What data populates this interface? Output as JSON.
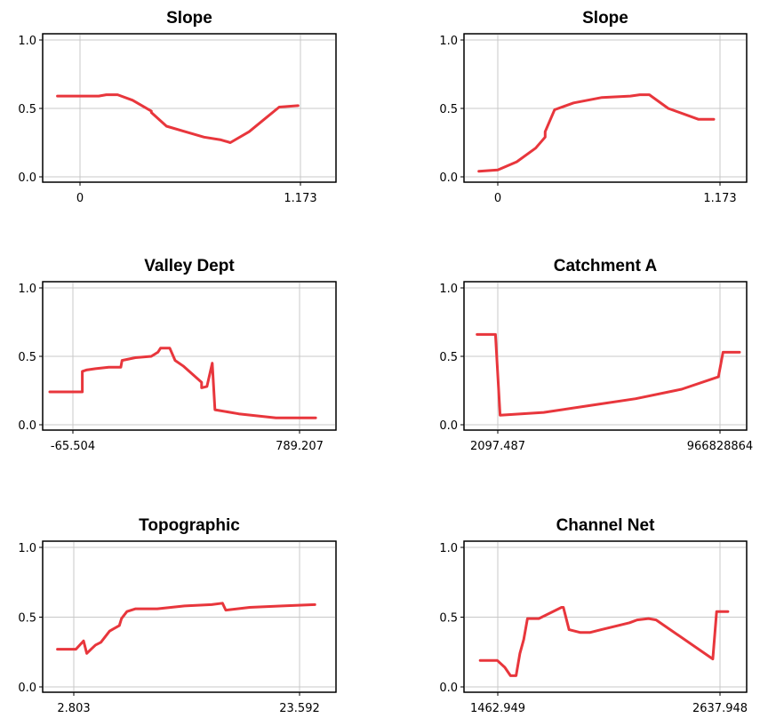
{
  "colors": {
    "curve": "#e8363c"
  },
  "chart_data": [
    {
      "type": "line",
      "title": "Slope",
      "y_ticks": [
        "0.0",
        "0.5",
        "1.0"
      ],
      "x_tick_labels": [
        "0",
        "1.173"
      ],
      "xlim": [
        0,
        1.173
      ],
      "ylim": [
        0,
        1
      ],
      "grid": true,
      "series": [
        {
          "x": [
            -0.12,
            0.1,
            0.14,
            0.2,
            0.28,
            0.38,
            0.38,
            0.46,
            0.56,
            0.66,
            0.75,
            0.8,
            0.9,
            0.98,
            1.06,
            1.16
          ],
          "y": [
            0.59,
            0.59,
            0.6,
            0.6,
            0.56,
            0.48,
            0.47,
            0.37,
            0.33,
            0.29,
            0.27,
            0.25,
            0.33,
            0.42,
            0.51,
            0.52
          ]
        }
      ]
    },
    {
      "type": "line",
      "title": "Slope",
      "y_ticks": [
        "0.0",
        "0.5",
        "1.0"
      ],
      "x_tick_labels": [
        "0",
        "1.173"
      ],
      "xlim": [
        0,
        1.173
      ],
      "ylim": [
        0,
        1
      ],
      "grid": true,
      "series": [
        {
          "x": [
            -0.1,
            0.0,
            0.1,
            0.2,
            0.25,
            0.25,
            0.3,
            0.4,
            0.55,
            0.7,
            0.75,
            0.8,
            0.9,
            1.06,
            1.14
          ],
          "y": [
            0.04,
            0.05,
            0.11,
            0.21,
            0.29,
            0.33,
            0.49,
            0.54,
            0.58,
            0.59,
            0.6,
            0.6,
            0.5,
            0.42,
            0.42
          ]
        }
      ]
    },
    {
      "type": "line",
      "title": "Valley Dept",
      "y_ticks": [
        "0.0",
        "0.5",
        "1.0"
      ],
      "x_tick_labels": [
        "-65.504",
        "789.207"
      ],
      "xlim": [
        -65.504,
        789.207
      ],
      "ylim": [
        0,
        1
      ],
      "grid": true,
      "series": [
        {
          "x": [
            -155,
            -30,
            -30,
            -15,
            20,
            70,
            115,
            120,
            170,
            230,
            255,
            265,
            300,
            320,
            350,
            420,
            420,
            440,
            460,
            470,
            560,
            700,
            770,
            850
          ],
          "y": [
            0.24,
            0.24,
            0.39,
            0.4,
            0.41,
            0.42,
            0.42,
            0.47,
            0.49,
            0.5,
            0.53,
            0.56,
            0.56,
            0.47,
            0.43,
            0.31,
            0.27,
            0.28,
            0.45,
            0.11,
            0.08,
            0.05,
            0.05,
            0.05
          ]
        }
      ]
    },
    {
      "type": "line",
      "title": "Catchment A",
      "y_ticks": [
        "0.0",
        "0.5",
        "1.0"
      ],
      "x_tick_labels": [
        "2097.487",
        "966828864"
      ],
      "xlim": [
        2097.487,
        966828864
      ],
      "ylim": [
        0,
        1
      ],
      "grid": true,
      "series": [
        {
          "x": [
            -90000000,
            -10000000,
            10000000,
            200000000,
            400000000,
            600000000,
            800000000,
            960000000,
            980000000,
            1060000000
          ],
          "y": [
            0.66,
            0.66,
            0.07,
            0.09,
            0.14,
            0.19,
            0.26,
            0.35,
            0.53,
            0.53
          ]
        }
      ]
    },
    {
      "type": "line",
      "title": "Topographic",
      "y_ticks": [
        "0.0",
        "0.5",
        "1.0"
      ],
      "x_tick_labels": [
        "2.803",
        "23.592"
      ],
      "xlim": [
        2.803,
        23.592
      ],
      "ylim": [
        0,
        1
      ],
      "grid": true,
      "series": [
        {
          "x": [
            1.3,
            3.0,
            3.7,
            4.0,
            4.4,
            4.8,
            5.3,
            6.1,
            7.0,
            7.2,
            7.7,
            8.5,
            10.5,
            13.0,
            15.5,
            16.5,
            16.8,
            19.0,
            22.0,
            25.0
          ],
          "y": [
            0.27,
            0.27,
            0.33,
            0.24,
            0.27,
            0.3,
            0.32,
            0.4,
            0.44,
            0.49,
            0.54,
            0.56,
            0.56,
            0.58,
            0.59,
            0.6,
            0.55,
            0.57,
            0.58,
            0.59
          ]
        }
      ]
    },
    {
      "type": "line",
      "title": "Channel Net",
      "y_ticks": [
        "0.0",
        "0.5",
        "1.0"
      ],
      "x_tick_labels": [
        "1462.949",
        "2637.948"
      ],
      "xlim": [
        1462.949,
        2637.948
      ],
      "ylim": [
        0,
        1
      ],
      "grid": true,
      "series": [
        {
          "x": [
            1370,
            1460,
            1500,
            1530,
            1560,
            1580,
            1600,
            1620,
            1680,
            1800,
            1810,
            1840,
            1900,
            1950,
            2010,
            2100,
            2160,
            2200,
            2260,
            2300,
            2600,
            2620,
            2680
          ],
          "y": [
            0.19,
            0.19,
            0.14,
            0.08,
            0.08,
            0.24,
            0.34,
            0.49,
            0.49,
            0.57,
            0.57,
            0.41,
            0.39,
            0.39,
            0.41,
            0.44,
            0.46,
            0.48,
            0.49,
            0.48,
            0.2,
            0.54,
            0.54
          ]
        }
      ]
    }
  ]
}
